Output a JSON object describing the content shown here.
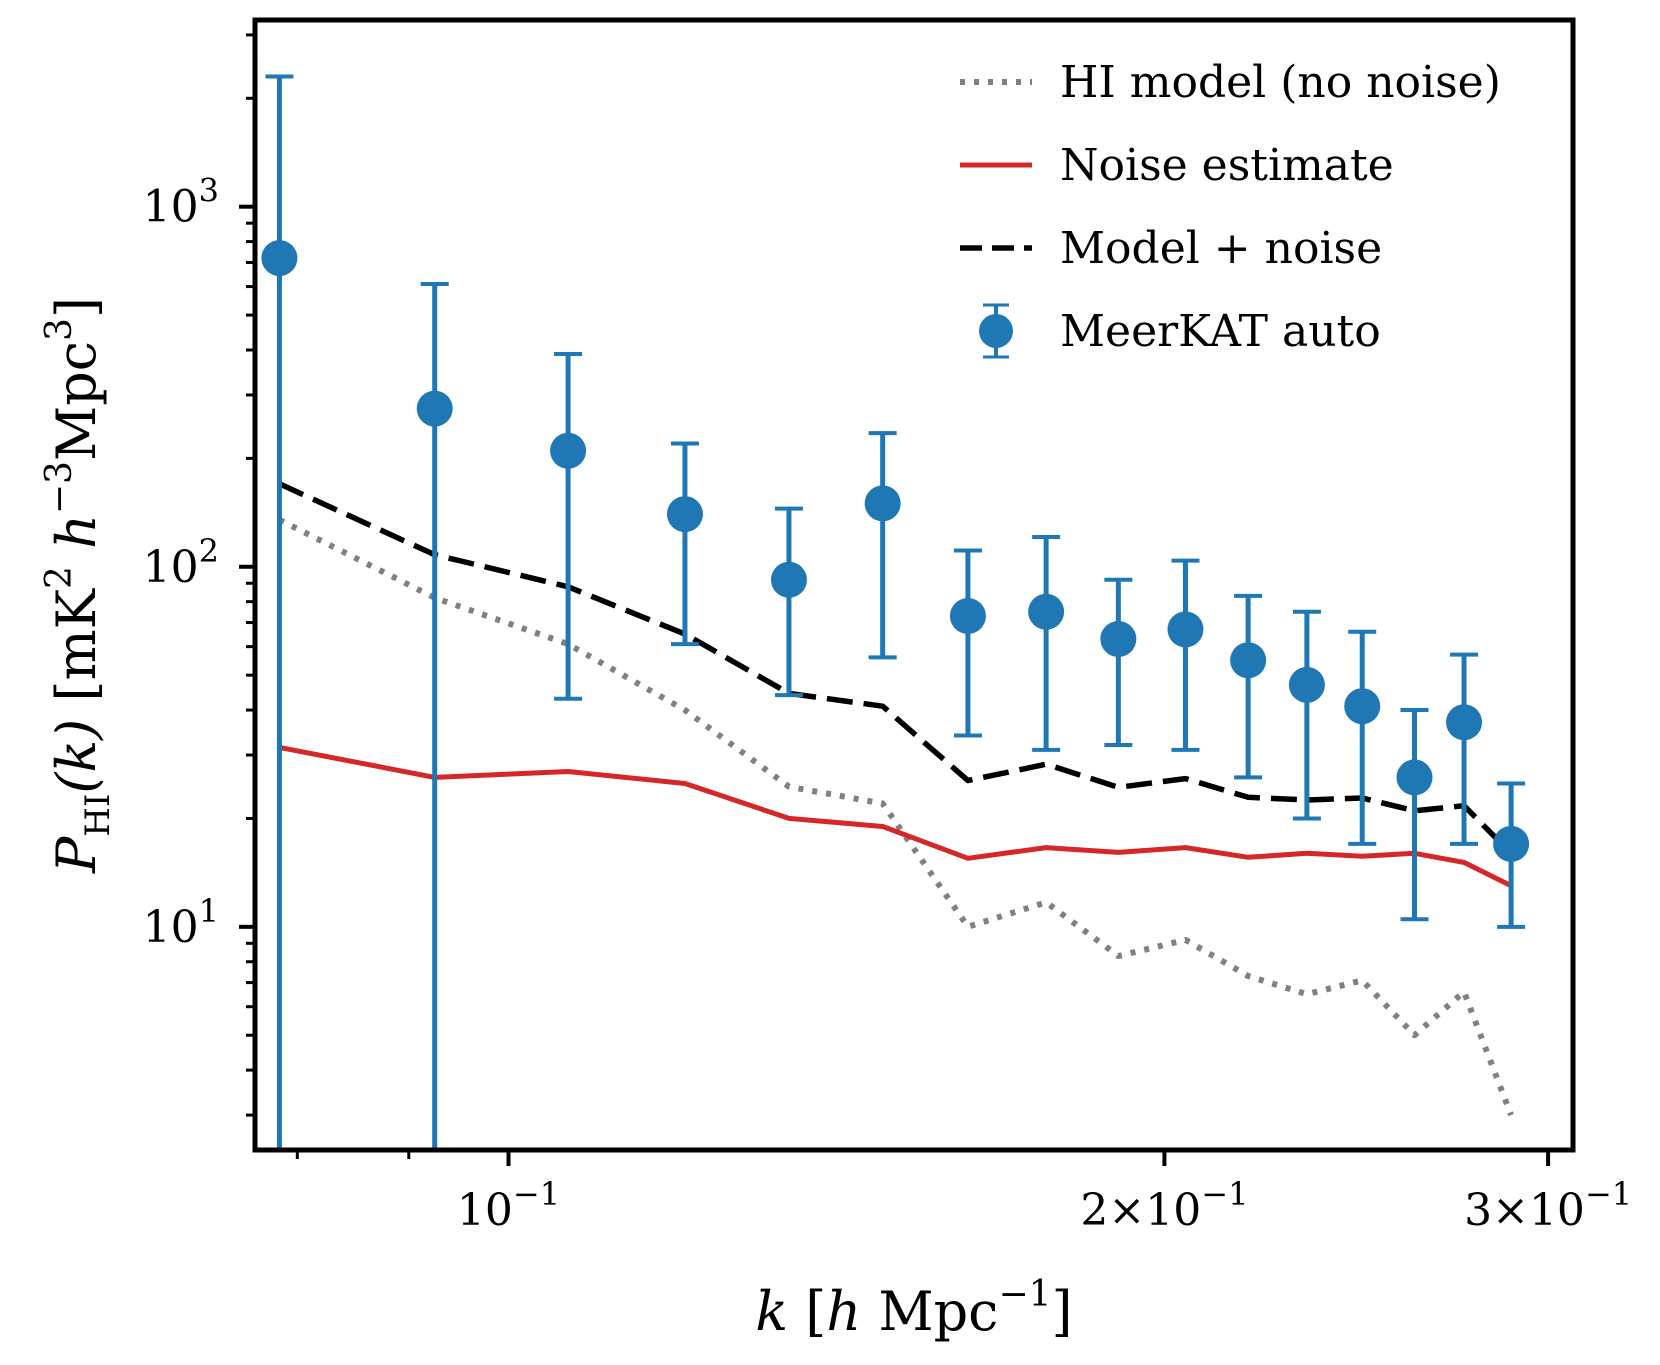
{
  "chart_data": {
    "type": "line",
    "xscale": "log",
    "yscale": "log",
    "xlim": [
      0.0765,
      0.308
    ],
    "ylim": [
      2.4,
      3300
    ],
    "x_ticks": [
      {
        "value": 0.1,
        "mantissa": "",
        "exp": "−1"
      },
      {
        "value": 0.2,
        "mantissa": "2×",
        "exp": "−1"
      },
      {
        "value": 0.3,
        "mantissa": "3×",
        "exp": "−1"
      }
    ],
    "y_ticks": [
      {
        "value": 10,
        "exp": "1"
      },
      {
        "value": 100,
        "exp": "2"
      },
      {
        "value": 1000,
        "exp": "3"
      }
    ],
    "xlabel": {
      "italic": "k",
      "bracket_open": " [",
      "unit_italic": "h",
      "unit": " Mpc",
      "unit_exp": "−1",
      "bracket_close": "]"
    },
    "ylabel": {
      "symbol": "P",
      "sub": "HI",
      "arg": "(k)",
      "bracket_open": " [mK",
      "exp1": "2",
      "h": " h",
      "exp2": "−3",
      "mid": "Mpc",
      "exp3": "3",
      "bracket_close": "]"
    },
    "legend": {
      "position": "upper right"
    },
    "series": [
      {
        "name": "HI model (no noise)",
        "style": "dotted",
        "color": "#808080",
        "x": [
          0.0785,
          0.0925,
          0.1065,
          0.1205,
          0.1345,
          0.1485,
          0.1625,
          0.1765,
          0.1905,
          0.2045,
          0.2185,
          0.2325,
          0.2465,
          0.2605,
          0.2745,
          0.2885
        ],
        "y": [
          135,
          82,
          61,
          40,
          24.5,
          22,
          10,
          11.7,
          8.3,
          9.2,
          7.3,
          6.5,
          7.1,
          5,
          6.6,
          3
        ]
      },
      {
        "name": "Noise estimate",
        "style": "solid",
        "color": "#d62728",
        "x": [
          0.0785,
          0.0925,
          0.1065,
          0.1205,
          0.1345,
          0.1485,
          0.1625,
          0.1765,
          0.1905,
          0.2045,
          0.2185,
          0.2325,
          0.2465,
          0.2605,
          0.2745,
          0.2885
        ],
        "y": [
          31.5,
          26,
          27,
          25,
          20,
          19,
          15.5,
          16.6,
          16.1,
          16.6,
          15.6,
          16,
          15.7,
          16,
          15.1,
          13
        ]
      },
      {
        "name": "Model + noise",
        "style": "dashed",
        "color": "#000000",
        "x": [
          0.0785,
          0.0925,
          0.1065,
          0.1205,
          0.1345,
          0.1485,
          0.1625,
          0.1765,
          0.1905,
          0.2045,
          0.2185,
          0.2325,
          0.2465,
          0.2605,
          0.2745,
          0.2885
        ],
        "y": [
          170,
          108,
          88,
          65,
          44.5,
          41,
          25.5,
          28.3,
          24.4,
          25.8,
          22.9,
          22.5,
          22.8,
          21,
          21.7,
          16
        ]
      },
      {
        "name": "MeerKAT auto",
        "style": "errorbar",
        "color": "#1f77b4",
        "x": [
          0.0785,
          0.0925,
          0.1065,
          0.1205,
          0.1345,
          0.1485,
          0.1625,
          0.1765,
          0.1905,
          0.2045,
          0.2185,
          0.2325,
          0.2465,
          0.2605,
          0.2745,
          0.2885
        ],
        "y": [
          720,
          275,
          210,
          140,
          92,
          150,
          73,
          75,
          63,
          67,
          55,
          47,
          41,
          26,
          37,
          17
        ],
        "y_low": [
          2.4,
          2.4,
          43,
          61,
          44,
          56,
          34,
          31,
          32,
          31,
          26,
          20,
          17,
          10.5,
          17,
          10
        ],
        "y_high": [
          2300,
          610,
          390,
          220,
          145,
          235,
          111,
          121,
          92,
          104,
          83,
          75,
          66,
          40,
          57,
          25
        ]
      }
    ]
  }
}
